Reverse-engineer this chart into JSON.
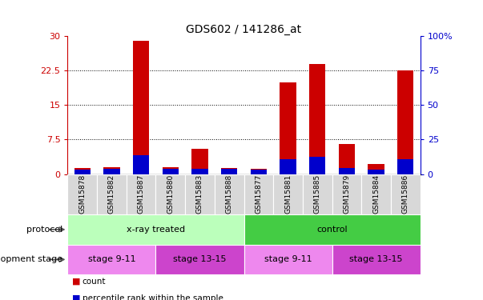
{
  "title": "GDS602 / 141286_at",
  "samples": [
    "GSM15878",
    "GSM15882",
    "GSM15887",
    "GSM15880",
    "GSM15883",
    "GSM15888",
    "GSM15877",
    "GSM15881",
    "GSM15885",
    "GSM15879",
    "GSM15884",
    "GSM15886"
  ],
  "count_values": [
    1.3,
    1.5,
    29.0,
    1.5,
    5.5,
    1.3,
    1.2,
    20.0,
    24.0,
    6.5,
    2.2,
    22.5
  ],
  "percentile_values": [
    3.3,
    3.6,
    13.8,
    3.6,
    3.9,
    3.9,
    3.3,
    10.8,
    12.6,
    4.5,
    3.3,
    10.8
  ],
  "count_color": "#cc0000",
  "percentile_color": "#0000cc",
  "bar_width": 0.55,
  "ylim_left": [
    0,
    30
  ],
  "ylim_right": [
    0,
    100
  ],
  "yticks_left": [
    0,
    7.5,
    15,
    22.5,
    30
  ],
  "yticks_right": [
    0,
    25,
    50,
    75,
    100
  ],
  "ytick_labels_left": [
    "0",
    "7.5",
    "15",
    "22.5",
    "30"
  ],
  "ytick_labels_right": [
    "0",
    "25",
    "50",
    "75",
    "100%"
  ],
  "left_axis_color": "#cc0000",
  "right_axis_color": "#0000cc",
  "protocol_groups": [
    {
      "label": "x-ray treated",
      "start": 0,
      "end": 6,
      "color": "#bbffbb"
    },
    {
      "label": "control",
      "start": 6,
      "end": 12,
      "color": "#44cc44"
    }
  ],
  "stage_groups": [
    {
      "label": "stage 9-11",
      "start": 0,
      "end": 3,
      "color": "#ee88ee"
    },
    {
      "label": "stage 13-15",
      "start": 3,
      "end": 6,
      "color": "#cc44cc"
    },
    {
      "label": "stage 9-11",
      "start": 6,
      "end": 9,
      "color": "#ee88ee"
    },
    {
      "label": "stage 13-15",
      "start": 9,
      "end": 12,
      "color": "#cc44cc"
    }
  ],
  "protocol_label": "protocol",
  "stage_label": "development stage",
  "legend_count": "count",
  "legend_percentile": "percentile rank within the sample",
  "tick_bg_color": "#cccccc",
  "grid_color": "#000000"
}
